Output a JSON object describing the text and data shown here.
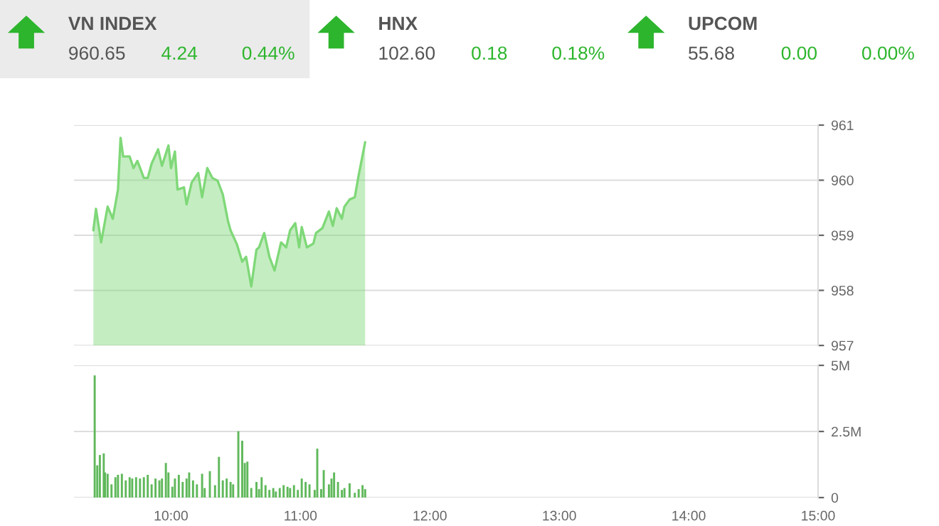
{
  "chart_data": [
    {
      "type": "other",
      "title": "VN INDEX",
      "color": "#ebebeb",
      "annotations": [
        "960.65",
        "4.24",
        "0.44%"
      ]
    },
    {
      "type": "other",
      "title": "HNX",
      "color": "#ffffff",
      "annotations": [
        "102.60",
        "0.18",
        "0.18%"
      ]
    },
    {
      "type": "other",
      "title": "UPCOM",
      "color": "#ffffff",
      "annotations": [
        "55.68",
        "0.00",
        "0.00%"
      ]
    },
    {
      "type": "area",
      "xlim": [
        9.25,
        15
      ],
      "ylim": [
        957,
        961
      ],
      "yticks": [
        957,
        958,
        959,
        960,
        961
      ],
      "grid": "y",
      "tick_labels": "y",
      "x": [
        9.4,
        9.42,
        9.46,
        9.51,
        9.55,
        9.59,
        9.61,
        9.63,
        9.68,
        9.71,
        9.74,
        9.79,
        9.82,
        9.85,
        9.9,
        9.93,
        9.98,
        10.0,
        10.03,
        10.05,
        10.1,
        10.12,
        10.16,
        10.21,
        10.24,
        10.28,
        10.32,
        10.36,
        10.4,
        10.44,
        10.46,
        10.51,
        10.55,
        10.58,
        10.62,
        10.66,
        10.68,
        10.72,
        10.76,
        10.8,
        10.85,
        10.89,
        10.92,
        10.96,
        10.99,
        11.01,
        11.05,
        11.1,
        11.12,
        11.17,
        11.22,
        11.25,
        11.28,
        11.32,
        11.34,
        11.38,
        11.42,
        11.45,
        11.5
      ],
      "series": [
        {
          "color": "#7fd878",
          "values": [
            959.09,
            959.48,
            958.87,
            959.52,
            959.3,
            959.83,
            960.77,
            960.43,
            960.43,
            960.22,
            960.35,
            960.04,
            960.04,
            960.3,
            960.56,
            960.26,
            960.63,
            960.22,
            960.52,
            959.83,
            959.87,
            959.56,
            959.96,
            960.13,
            959.69,
            960.22,
            960.04,
            959.99,
            959.74,
            959.26,
            959.09,
            958.83,
            958.52,
            958.61,
            958.07,
            958.74,
            958.78,
            959.04,
            958.61,
            958.36,
            958.87,
            958.78,
            959.09,
            959.22,
            958.78,
            959.15,
            958.78,
            958.85,
            959.04,
            959.13,
            959.43,
            959.17,
            959.49,
            959.3,
            959.52,
            959.65,
            959.69,
            960.09,
            960.69
          ]
        }
      ]
    },
    {
      "type": "bar",
      "xlim": [
        9.25,
        15
      ],
      "ylim": [
        0,
        5
      ],
      "yticks": [
        0,
        {
          "value": 2.5,
          "label": "2.5M"
        },
        {
          "value": 5,
          "label": "5M"
        }
      ],
      "xticks": [
        {
          "value": 10,
          "label": "10:00"
        },
        {
          "value": 11,
          "label": "11:00"
        },
        {
          "value": 12,
          "label": "12:00"
        },
        {
          "value": 13,
          "label": "13:00"
        },
        {
          "value": 14,
          "label": "14:00"
        },
        {
          "value": 15,
          "label": "15:00"
        }
      ],
      "grid": "y",
      "x": [
        9.41,
        9.43,
        9.45,
        9.48,
        9.49,
        9.51,
        9.54,
        9.57,
        9.59,
        9.62,
        9.65,
        9.68,
        9.7,
        9.73,
        9.76,
        9.79,
        9.82,
        9.85,
        9.88,
        9.91,
        9.93,
        9.96,
        9.98,
        10.01,
        10.03,
        10.06,
        10.09,
        10.12,
        10.14,
        10.17,
        10.2,
        10.24,
        10.26,
        10.3,
        10.34,
        10.37,
        10.4,
        10.43,
        10.46,
        10.48,
        10.52,
        10.55,
        10.57,
        10.59,
        10.62,
        10.66,
        10.68,
        10.7,
        10.73,
        10.76,
        10.79,
        10.81,
        10.84,
        10.87,
        10.9,
        10.92,
        10.95,
        10.98,
        11.01,
        11.04,
        11.07,
        11.11,
        11.13,
        11.16,
        11.18,
        11.22,
        11.24,
        11.26,
        11.29,
        11.32,
        11.34,
        11.38,
        11.42,
        11.45,
        11.48,
        11.5
      ],
      "series": [
        {
          "color": "#5fb85a",
          "values": [
            4.62,
            1.22,
            1.61,
            1.67,
            0.95,
            0.9,
            0.5,
            0.77,
            0.86,
            0.9,
            0.65,
            0.77,
            0.72,
            0.77,
            0.72,
            0.77,
            0.86,
            0.5,
            0.72,
            0.65,
            0.72,
            1.31,
            0.95,
            0.41,
            0.72,
            0.86,
            0.59,
            0.72,
            0.95,
            0.65,
            0.5,
            0.9,
            0.36,
            1.0,
            0.47,
            1.54,
            0.65,
            0.72,
            0.59,
            0.5,
            2.51,
            2.15,
            1.31,
            1.36,
            0.36,
            0.59,
            0.32,
            0.77,
            0.47,
            0.29,
            0.36,
            0.23,
            0.36,
            0.47,
            0.41,
            0.36,
            0.47,
            0.29,
            0.72,
            0.59,
            0.5,
            0.29,
            1.85,
            0.32,
            1.04,
            0.5,
            0.72,
            0.95,
            0.59,
            0.29,
            0.36,
            0.54,
            0.18,
            0.32,
            0.47,
            0.32
          ]
        }
      ]
    }
  ]
}
